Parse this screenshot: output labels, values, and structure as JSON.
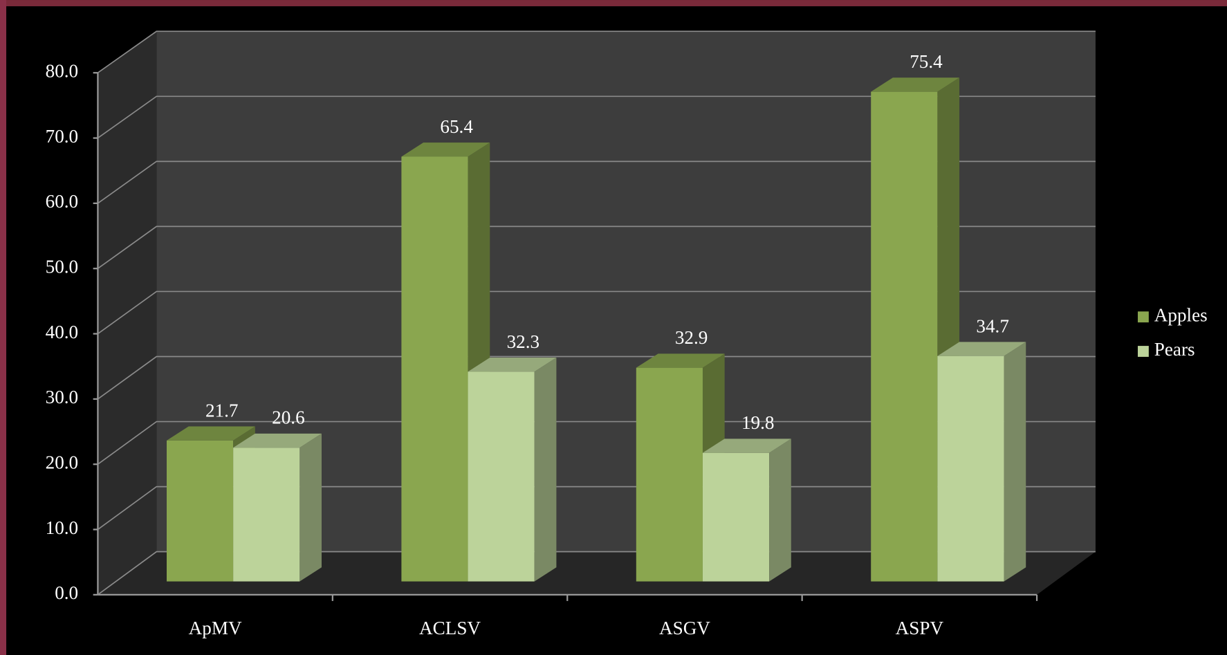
{
  "chart_data": {
    "type": "bar3d",
    "categories": [
      "ApMV",
      "ACLSV",
      "ASGV",
      "ASPV"
    ],
    "series": [
      {
        "name": "Apples",
        "color": "#8aa64f",
        "values": [
          21.7,
          65.4,
          32.9,
          75.4
        ]
      },
      {
        "name": "Pears",
        "color": "#bcd39a",
        "values": [
          20.6,
          32.3,
          19.8,
          34.7
        ]
      }
    ],
    "ylim": [
      0,
      80
    ],
    "yticks": [
      {
        "value": 0,
        "label": "0.0"
      },
      {
        "value": 10,
        "label": "10.0"
      },
      {
        "value": 20,
        "label": "20.0"
      },
      {
        "value": 30,
        "label": "30.0"
      },
      {
        "value": 40,
        "label": "40.0"
      },
      {
        "value": 50,
        "label": "50.0"
      },
      {
        "value": 60,
        "label": "60.0"
      },
      {
        "value": 70,
        "label": "70.0"
      },
      {
        "value": 80,
        "label": "80.0"
      }
    ],
    "grid": true,
    "legend": "right"
  }
}
